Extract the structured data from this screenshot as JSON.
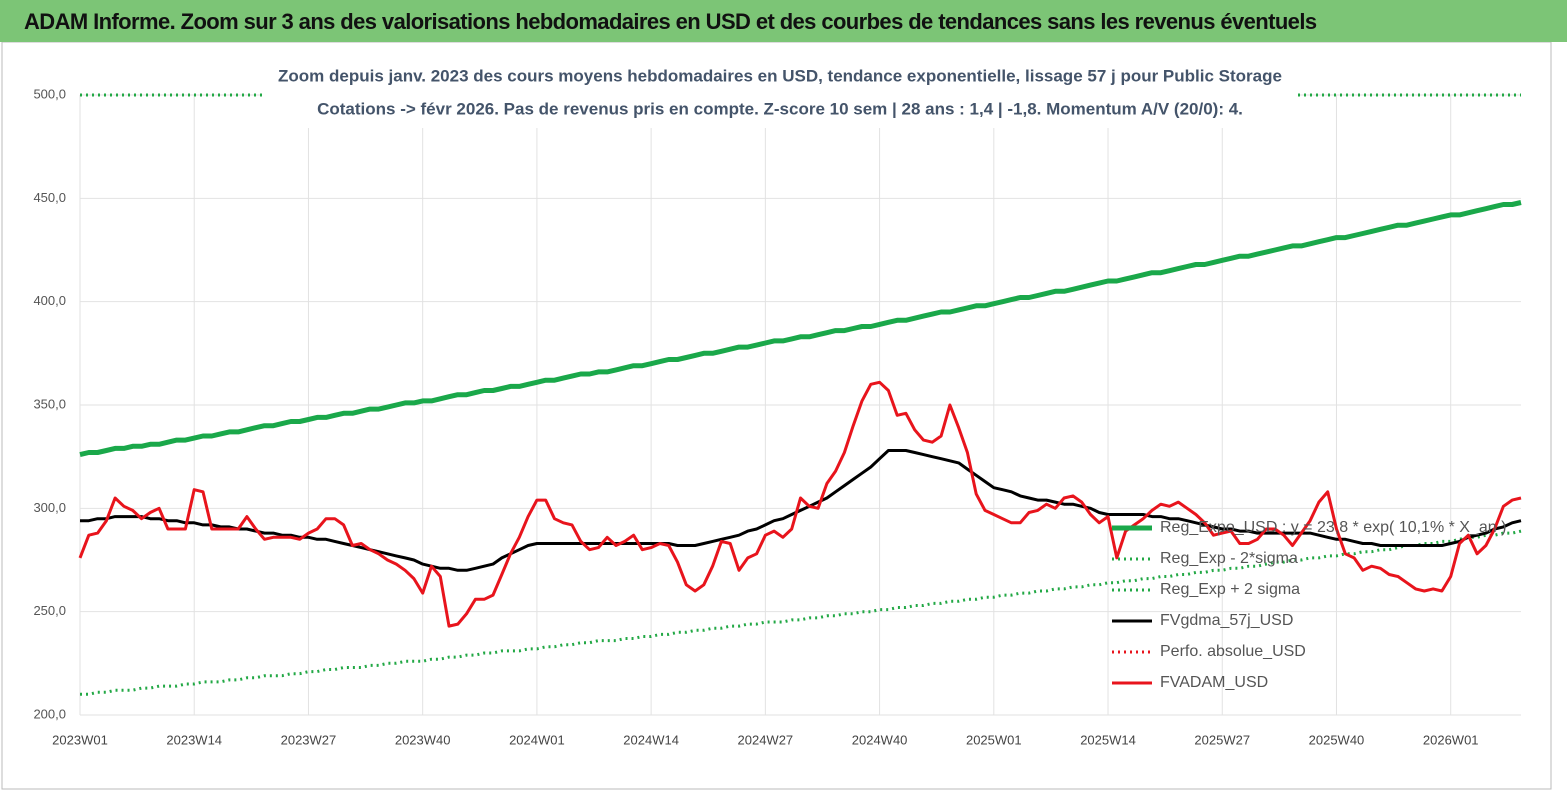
{
  "header": {
    "title": "ADAM Informe. Zoom sur 3 ans des valorisations hebdomadaires en USD et des courbes de tendances sans les revenus éventuels"
  },
  "chart_data": {
    "type": "line",
    "title": "Zoom depuis janv. 2023 des cours moyens hebdomadaires en USD, tendance exponentielle, lissage 57 j pour Public Storage",
    "subtitle": "Cotations -> févr 2026. Pas de revenus pris en compte. Z-score 10 sem  | 28 ans : 1,4 | -1,8. Momentum A/V (20/0): 4.",
    "categories": [
      "2023W01",
      null,
      null,
      null,
      null,
      null,
      null,
      null,
      null,
      null,
      null,
      null,
      null,
      "2023W14",
      null,
      null,
      null,
      null,
      null,
      null,
      null,
      null,
      null,
      null,
      null,
      null,
      "2023W27",
      null,
      null,
      null,
      null,
      null,
      null,
      null,
      null,
      null,
      null,
      null,
      null,
      "2023W40",
      null,
      null,
      null,
      null,
      null,
      null,
      null,
      null,
      null,
      null,
      null,
      null,
      "2024W01",
      null,
      null,
      null,
      null,
      null,
      null,
      null,
      null,
      null,
      null,
      null,
      null,
      "2024W14",
      null,
      null,
      null,
      null,
      null,
      null,
      null,
      null,
      null,
      null,
      null,
      null,
      "2024W27",
      null,
      null,
      null,
      null,
      null,
      null,
      null,
      null,
      null,
      null,
      null,
      null,
      "2024W40",
      null,
      null,
      null,
      null,
      null,
      null,
      null,
      null,
      null,
      null,
      null,
      null,
      "2025W01",
      null,
      null,
      null,
      null,
      null,
      null,
      null,
      null,
      null,
      null,
      null,
      null,
      "2025W14",
      null,
      null,
      null,
      null,
      null,
      null,
      null,
      null,
      null,
      null,
      null,
      null,
      "2025W27",
      null,
      null,
      null,
      null,
      null,
      null,
      null,
      null,
      null,
      null,
      null,
      null,
      "2025W40",
      null,
      null,
      null,
      null,
      null,
      null,
      null,
      null,
      null,
      null,
      null,
      null,
      "2026W01",
      null,
      null,
      null,
      null,
      null,
      null,
      null,
      null
    ],
    "ylim": [
      200,
      500
    ],
    "yticks": [
      {
        "value": 200,
        "label": "200,0"
      },
      {
        "value": 250,
        "label": "250,0"
      },
      {
        "value": 300,
        "label": "300,0"
      },
      {
        "value": 350,
        "label": "350,0"
      },
      {
        "value": 400,
        "label": "400,0"
      },
      {
        "value": 450,
        "label": "450,0"
      },
      {
        "value": 500,
        "label": "500,0"
      }
    ],
    "grid": true,
    "series": [
      {
        "name": "Reg_Expo_USD : y = 23,8 * exp( 10,1% * X_an )",
        "color": "#1aa84a",
        "style": "solid",
        "values": [
          326,
          327,
          327,
          328,
          329,
          329,
          330,
          330,
          331,
          331,
          332,
          333,
          333,
          334,
          335,
          335,
          336,
          337,
          337,
          338,
          339,
          340,
          340,
          341,
          342,
          342,
          343,
          344,
          344,
          345,
          346,
          346,
          347,
          348,
          348,
          349,
          350,
          351,
          351,
          352,
          352,
          353,
          354,
          355,
          355,
          356,
          357,
          357,
          358,
          359,
          359,
          360,
          361,
          362,
          362,
          363,
          364,
          365,
          365,
          366,
          366,
          367,
          368,
          369,
          369,
          370,
          371,
          372,
          372,
          373,
          374,
          375,
          375,
          376,
          377,
          378,
          378,
          379,
          380,
          381,
          381,
          382,
          383,
          383,
          384,
          385,
          386,
          386,
          387,
          388,
          388,
          389,
          390,
          391,
          391,
          392,
          393,
          394,
          395,
          395,
          396,
          397,
          398,
          398,
          399,
          400,
          401,
          402,
          402,
          403,
          404,
          405,
          405,
          406,
          407,
          408,
          409,
          410,
          410,
          411,
          412,
          413,
          414,
          414,
          415,
          416,
          417,
          418,
          418,
          419,
          420,
          421,
          422,
          422,
          423,
          424,
          425,
          426,
          427,
          427,
          428,
          429,
          430,
          431,
          431,
          432,
          433,
          434,
          435,
          436,
          437,
          437,
          438,
          439,
          440,
          441,
          442,
          442,
          443,
          444,
          445,
          446,
          447,
          447,
          448
        ]
      },
      {
        "name": "Reg_Exp - 2*sigma",
        "color": "#22a845",
        "style": "dotted",
        "values": [
          210,
          210,
          211,
          211,
          212,
          212,
          212,
          213,
          213,
          214,
          214,
          214,
          215,
          215,
          216,
          216,
          216,
          217,
          217,
          218,
          218,
          219,
          219,
          219,
          220,
          220,
          221,
          221,
          222,
          222,
          223,
          223,
          223,
          224,
          224,
          225,
          225,
          226,
          226,
          226,
          227,
          227,
          228,
          228,
          229,
          229,
          230,
          230,
          231,
          231,
          231,
          232,
          232,
          233,
          233,
          234,
          234,
          235,
          235,
          236,
          236,
          236,
          237,
          237,
          238,
          238,
          239,
          239,
          240,
          240,
          241,
          241,
          242,
          242,
          243,
          243,
          244,
          244,
          245,
          245,
          245,
          246,
          246,
          247,
          247,
          248,
          248,
          249,
          249,
          250,
          250,
          251,
          251,
          252,
          252,
          253,
          253,
          254,
          254,
          255,
          255,
          256,
          256,
          257,
          257,
          258,
          258,
          259,
          259,
          260,
          260,
          261,
          261,
          262,
          262,
          263,
          263,
          264,
          264,
          265,
          265,
          266,
          266,
          267,
          267,
          268,
          268,
          269,
          269,
          270,
          270,
          271,
          271,
          272,
          272,
          273,
          274,
          274,
          275,
          275,
          276,
          276,
          277,
          277,
          278,
          278,
          279,
          279,
          280,
          280,
          281,
          282,
          282,
          283,
          283,
          284,
          284,
          285,
          286,
          286,
          287,
          287,
          288,
          288,
          289
        ]
      },
      {
        "name": "Reg_Exp + 2 sigma",
        "color": "#22a845",
        "style": "dotted",
        "values": [
          500,
          500,
          500,
          500,
          500,
          500,
          500,
          500,
          500,
          500,
          500,
          500,
          500,
          500,
          500,
          500,
          500,
          500,
          500,
          500,
          500,
          500,
          500,
          500,
          500,
          500,
          500,
          500,
          500,
          500,
          500,
          500,
          500,
          500,
          500,
          500,
          500,
          500,
          500,
          500,
          500,
          500,
          500,
          500,
          500,
          500,
          500,
          500,
          500,
          500,
          500,
          500,
          500,
          500,
          500,
          500,
          500,
          500,
          500,
          500,
          500,
          500,
          500,
          500,
          500,
          500,
          500,
          500,
          500,
          500,
          500,
          500,
          500,
          500,
          500,
          500,
          500,
          500,
          500,
          500,
          500,
          500,
          500,
          500,
          500,
          500,
          500,
          500,
          500,
          500,
          500,
          500,
          500,
          500,
          500,
          500,
          500,
          500,
          500,
          500,
          500,
          500,
          500,
          500,
          500,
          500,
          500,
          500,
          500,
          500,
          500,
          500,
          500,
          500,
          500,
          500,
          500,
          500,
          500,
          500,
          500,
          500,
          500,
          500,
          500,
          500,
          500,
          500,
          500,
          500,
          500,
          500,
          500,
          500,
          500,
          500,
          500,
          500,
          500,
          500,
          500,
          500,
          500,
          500,
          500,
          500,
          500,
          500,
          500,
          500,
          500,
          500,
          500,
          500,
          500,
          500,
          500,
          500,
          500,
          500,
          500,
          500,
          500,
          500,
          500
        ]
      },
      {
        "name": "FVgdma_57j_USD",
        "color": "#000000",
        "style": "solid",
        "values": [
          294,
          294,
          295,
          295,
          296,
          296,
          296,
          296,
          295,
          295,
          294,
          294,
          293,
          293,
          292,
          292,
          291,
          291,
          290,
          290,
          289,
          288,
          288,
          287,
          287,
          286,
          286,
          285,
          285,
          284,
          283,
          282,
          281,
          280,
          279,
          278,
          277,
          276,
          275,
          273,
          272,
          271,
          271,
          270,
          270,
          271,
          272,
          273,
          276,
          278,
          280,
          282,
          283,
          283,
          283,
          283,
          283,
          283,
          283,
          283,
          283,
          283,
          283,
          283,
          283,
          283,
          283,
          283,
          282,
          282,
          282,
          283,
          284,
          285,
          286,
          287,
          289,
          290,
          292,
          294,
          295,
          297,
          299,
          301,
          303,
          305,
          308,
          311,
          314,
          317,
          320,
          324,
          328,
          328,
          328,
          327,
          326,
          325,
          324,
          323,
          322,
          319,
          316,
          313,
          310,
          309,
          308,
          306,
          305,
          304,
          304,
          303,
          302,
          302,
          301,
          300,
          298,
          297,
          297,
          297,
          297,
          297,
          296,
          296,
          295,
          295,
          294,
          293,
          292,
          291,
          290,
          290,
          289,
          289,
          288,
          288,
          288,
          288,
          288,
          288,
          288,
          287,
          286,
          285,
          285,
          284,
          283,
          283,
          282,
          282,
          282,
          282,
          282,
          282,
          282,
          282,
          283,
          284,
          286,
          287,
          288,
          290,
          291,
          293,
          294
        ]
      },
      {
        "name": "Perfo. absolue_USD",
        "color": "#e8141c",
        "style": "dotted",
        "values": [
          null,
          null,
          null,
          null,
          null,
          null,
          null,
          null,
          null,
          null,
          null,
          null,
          null,
          null,
          null,
          null,
          null,
          null,
          null,
          null,
          null,
          null,
          null,
          null,
          null,
          null,
          null,
          null,
          null,
          null,
          null,
          null,
          null,
          null,
          null,
          null,
          null,
          null,
          null,
          null,
          null,
          null,
          null,
          null,
          null,
          null,
          null,
          null,
          null,
          null,
          null,
          null,
          null,
          null,
          null,
          null,
          null,
          null,
          null,
          null,
          null,
          null,
          null,
          null,
          null,
          null,
          null,
          null,
          null,
          null,
          null,
          null,
          null,
          null,
          null,
          null,
          null,
          null,
          null,
          null,
          null,
          null,
          null,
          null,
          null,
          null,
          null,
          null,
          null,
          null,
          null,
          null,
          null,
          null,
          null,
          null,
          null,
          null,
          null,
          null,
          null,
          null,
          null,
          null,
          null,
          null,
          null,
          null,
          null,
          null,
          null,
          null,
          null,
          null,
          null,
          null,
          null,
          null,
          null,
          null,
          null,
          null,
          null,
          null,
          null,
          null,
          null,
          null,
          null,
          null,
          null,
          null,
          null,
          null,
          null,
          null,
          null,
          null,
          null,
          null,
          null,
          null,
          null,
          null,
          null,
          null,
          null,
          null,
          null,
          null,
          null,
          null,
          null,
          null,
          null,
          null,
          null,
          null,
          null,
          null,
          null,
          null,
          null,
          null,
          null
        ]
      },
      {
        "name": "FVADAM_USD",
        "color": "#e8141c",
        "style": "solid",
        "values": [
          276,
          287,
          288,
          294,
          305,
          301,
          299,
          295,
          298,
          300,
          290,
          290,
          290,
          309,
          308,
          290,
          290,
          290,
          290,
          296,
          290,
          285,
          286,
          286,
          286,
          285,
          288,
          290,
          295,
          295,
          292,
          282,
          283,
          280,
          278,
          275,
          273,
          270,
          266,
          259,
          272,
          267,
          243,
          244,
          249,
          256,
          256,
          258,
          268,
          278,
          286,
          296,
          304,
          304,
          295,
          293,
          292,
          284,
          280,
          281,
          286,
          282,
          284,
          287,
          280,
          281,
          283,
          282,
          274,
          263,
          260,
          263,
          272,
          284,
          283,
          270,
          276,
          278,
          287,
          289,
          286,
          290,
          305,
          301,
          300,
          312,
          318,
          327,
          340,
          352,
          360,
          361,
          357,
          345,
          346,
          338,
          333,
          332,
          335,
          350,
          339,
          327,
          307,
          299,
          297,
          295,
          293,
          293,
          298,
          299,
          302,
          300,
          305,
          306,
          303,
          297,
          293,
          296,
          276,
          289,
          292,
          295,
          299,
          302,
          301,
          303,
          300,
          297,
          293,
          287,
          288,
          289,
          283,
          283,
          285,
          290,
          290,
          287,
          282,
          288,
          294,
          303,
          308,
          290,
          278,
          276,
          270,
          272,
          271,
          268,
          267,
          264,
          261,
          260,
          261,
          260,
          267,
          283,
          287,
          278,
          282,
          290,
          301,
          304,
          305
        ]
      }
    ]
  }
}
